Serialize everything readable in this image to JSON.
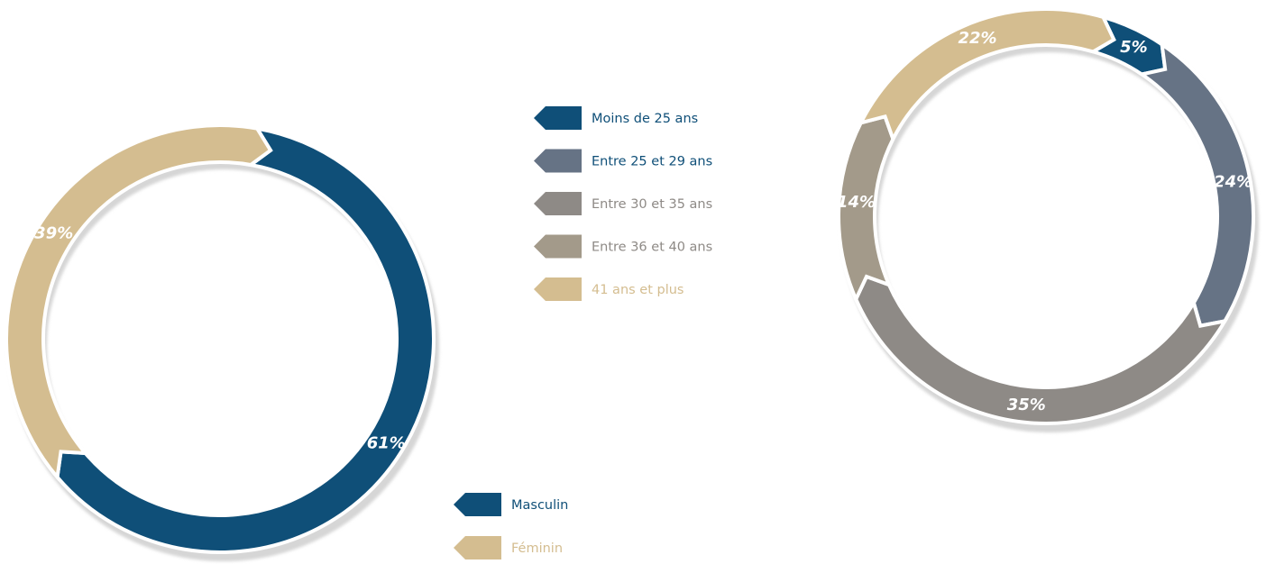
{
  "chart_data": [
    {
      "type": "pie",
      "variant": "donut",
      "categories": [
        "Masculin",
        "Féminin"
      ],
      "values": [
        61,
        39
      ],
      "labels": [
        "61%",
        "39%"
      ],
      "colors": [
        "#0f4f78",
        "#d4bd90"
      ],
      "legend_text_colors": [
        "#0f4f78",
        "#d4bd90"
      ],
      "legend_position": "right"
    },
    {
      "type": "pie",
      "variant": "donut",
      "categories": [
        "Moins de 25 ans",
        "Entre 25 et 29 ans",
        "Entre 30 et 35 ans",
        "Entre 36 et 40 ans",
        "41 ans et plus"
      ],
      "values": [
        5,
        24,
        35,
        14,
        22
      ],
      "labels": [
        "5%",
        "24%",
        "35%",
        "14%",
        "22%"
      ],
      "colors": [
        "#0f4f78",
        "#667385",
        "#8e8a86",
        "#a39a8a",
        "#d4bd90"
      ],
      "legend_text_colors": [
        "#0f4f78",
        "#0f4f78",
        "#8e8a86",
        "#8e8a86",
        "#d4bd90"
      ],
      "legend_position": "left"
    }
  ]
}
